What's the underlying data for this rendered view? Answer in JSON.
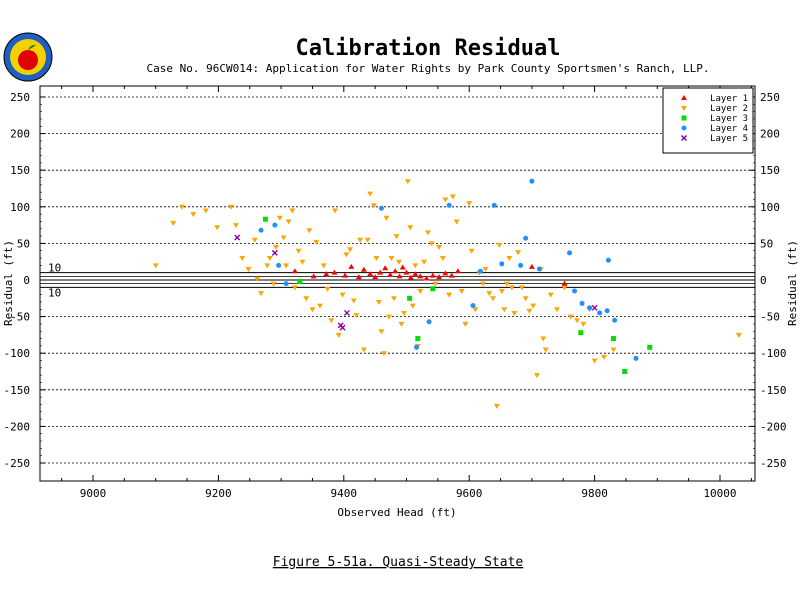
{
  "chart_data": {
    "type": "scatter",
    "title": "Calibration Residual",
    "subtitle": "Case No. 96CW014: Application for Water Rights by Park County Sportsmen's Ranch, LLP.",
    "xlabel": "Observed Head (ft)",
    "ylabel": "Residual (ft)",
    "ylabel_right": "Residual (ft)",
    "caption": "Figure 5-51a.  Quasi-Steady State",
    "xlim": [
      8930,
      10060
    ],
    "ylim": [
      -255,
      255
    ],
    "xticks": [
      9000,
      9200,
      9400,
      9600,
      9800,
      10000
    ],
    "yticks": [
      -250,
      -200,
      -150,
      -100,
      -50,
      0,
      50,
      100,
      150,
      200,
      250
    ],
    "reference_lines": [
      10,
      -10
    ],
    "reference_labels": [
      "10",
      "10"
    ],
    "grid": "horizontal dashed",
    "legend_position": "top-right",
    "series": [
      {
        "name": "Layer 1",
        "marker": "triangle-up",
        "color": "#ff0000",
        "points": [
          [
            9322,
            12
          ],
          [
            9352,
            5
          ],
          [
            9372,
            8
          ],
          [
            9385,
            10
          ],
          [
            9402,
            6
          ],
          [
            9412,
            18
          ],
          [
            9424,
            4
          ],
          [
            9432,
            14
          ],
          [
            9442,
            8
          ],
          [
            9450,
            4
          ],
          [
            9458,
            10
          ],
          [
            9466,
            16
          ],
          [
            9474,
            7
          ],
          [
            9482,
            12
          ],
          [
            9489,
            5
          ],
          [
            9494,
            17
          ],
          [
            9500,
            10
          ],
          [
            9507,
            3
          ],
          [
            9514,
            8
          ],
          [
            9522,
            5
          ],
          [
            9532,
            2
          ],
          [
            9542,
            6
          ],
          [
            9552,
            4
          ],
          [
            9562,
            9
          ],
          [
            9572,
            6
          ],
          [
            9582,
            12
          ],
          [
            9700,
            18
          ],
          [
            9752,
            -5
          ]
        ]
      },
      {
        "name": "Layer 2",
        "marker": "triangle-down",
        "color": "#ffa500",
        "points": [
          [
            9100,
            20
          ],
          [
            9128,
            78
          ],
          [
            9142,
            100
          ],
          [
            9160,
            90
          ],
          [
            9180,
            95
          ],
          [
            9198,
            72
          ],
          [
            9220,
            100
          ],
          [
            9228,
            75
          ],
          [
            9238,
            30
          ],
          [
            9248,
            15
          ],
          [
            9258,
            55
          ],
          [
            9262,
            2
          ],
          [
            9268,
            -18
          ],
          [
            9278,
            20
          ],
          [
            9282,
            30
          ],
          [
            9288,
            -5
          ],
          [
            9292,
            45
          ],
          [
            9298,
            85
          ],
          [
            9304,
            58
          ],
          [
            9308,
            20
          ],
          [
            9312,
            80
          ],
          [
            9318,
            95
          ],
          [
            9322,
            -10
          ],
          [
            9328,
            40
          ],
          [
            9334,
            25
          ],
          [
            9340,
            -25
          ],
          [
            9345,
            68
          ],
          [
            9350,
            -40
          ],
          [
            9356,
            52
          ],
          [
            9362,
            -35
          ],
          [
            9368,
            20
          ],
          [
            9374,
            -12
          ],
          [
            9380,
            -55
          ],
          [
            9386,
            95
          ],
          [
            9392,
            -75
          ],
          [
            9398,
            -20
          ],
          [
            9404,
            35
          ],
          [
            9410,
            42
          ],
          [
            9416,
            -28
          ],
          [
            9420,
            -48
          ],
          [
            9426,
            55
          ],
          [
            9432,
            -95
          ],
          [
            9438,
            55
          ],
          [
            9442,
            118
          ],
          [
            9448,
            102
          ],
          [
            9452,
            30
          ],
          [
            9456,
            -30
          ],
          [
            9460,
            -70
          ],
          [
            9464,
            -100
          ],
          [
            9468,
            85
          ],
          [
            9472,
            -50
          ],
          [
            9476,
            30
          ],
          [
            9480,
            -25
          ],
          [
            9484,
            60
          ],
          [
            9488,
            25
          ],
          [
            9492,
            -60
          ],
          [
            9496,
            -45
          ],
          [
            9502,
            135
          ],
          [
            9506,
            72
          ],
          [
            9510,
            -35
          ],
          [
            9514,
            20
          ],
          [
            9518,
            -90
          ],
          [
            9522,
            -15
          ],
          [
            9528,
            25
          ],
          [
            9534,
            65
          ],
          [
            9540,
            50
          ],
          [
            9546,
            -5
          ],
          [
            9552,
            45
          ],
          [
            9558,
            30
          ],
          [
            9562,
            110
          ],
          [
            9568,
            -20
          ],
          [
            9574,
            114
          ],
          [
            9580,
            80
          ],
          [
            9588,
            -15
          ],
          [
            9594,
            -60
          ],
          [
            9600,
            105
          ],
          [
            9604,
            40
          ],
          [
            9610,
            -40
          ],
          [
            9616,
            10
          ],
          [
            9622,
            -5
          ],
          [
            9626,
            15
          ],
          [
            9632,
            -18
          ],
          [
            9638,
            -25
          ],
          [
            9644,
            -172
          ],
          [
            9648,
            48
          ],
          [
            9652,
            -15
          ],
          [
            9656,
            -40
          ],
          [
            9660,
            -5
          ],
          [
            9664,
            30
          ],
          [
            9668,
            -10
          ],
          [
            9672,
            -45
          ],
          [
            9678,
            38
          ],
          [
            9684,
            -10
          ],
          [
            9690,
            -25
          ],
          [
            9696,
            -42
          ],
          [
            9702,
            -35
          ],
          [
            9708,
            -130
          ],
          [
            9714,
            15
          ],
          [
            9718,
            -80
          ],
          [
            9722,
            -95
          ],
          [
            9730,
            -20
          ],
          [
            9740,
            -40
          ],
          [
            9752,
            -10
          ],
          [
            9762,
            -50
          ],
          [
            9772,
            -55
          ],
          [
            9782,
            -60
          ],
          [
            9792,
            -40
          ],
          [
            9800,
            -110
          ],
          [
            9815,
            -105
          ],
          [
            9830,
            -95
          ],
          [
            10030,
            -75
          ]
        ]
      },
      {
        "name": "Layer 3",
        "marker": "square",
        "color": "#00dd00",
        "points": [
          [
            9275,
            83
          ],
          [
            9330,
            -2
          ],
          [
            9505,
            -25
          ],
          [
            9518,
            -80
          ],
          [
            9542,
            -12
          ],
          [
            9778,
            -72
          ],
          [
            9830,
            -80
          ],
          [
            9848,
            -125
          ],
          [
            9888,
            -92
          ]
        ]
      },
      {
        "name": "Layer 4",
        "marker": "circle",
        "color": "#1e90ff",
        "points": [
          [
            9268,
            68
          ],
          [
            9290,
            75
          ],
          [
            9296,
            20
          ],
          [
            9308,
            -5
          ],
          [
            9460,
            98
          ],
          [
            9516,
            -92
          ],
          [
            9536,
            -57
          ],
          [
            9568,
            102
          ],
          [
            9606,
            -35
          ],
          [
            9618,
            12
          ],
          [
            9640,
            102
          ],
          [
            9652,
            22
          ],
          [
            9682,
            20
          ],
          [
            9690,
            57
          ],
          [
            9700,
            135
          ],
          [
            9712,
            15
          ],
          [
            9760,
            37
          ],
          [
            9768,
            -15
          ],
          [
            9780,
            -32
          ],
          [
            9792,
            -38
          ],
          [
            9808,
            -45
          ],
          [
            9820,
            -42
          ],
          [
            9822,
            27
          ],
          [
            9832,
            -55
          ],
          [
            9866,
            -107
          ]
        ]
      },
      {
        "name": "Layer 5",
        "marker": "x",
        "color": "#8800aa",
        "points": [
          [
            9230,
            58
          ],
          [
            9290,
            37
          ],
          [
            9395,
            -62
          ],
          [
            9398,
            -65
          ],
          [
            9405,
            -45
          ],
          [
            9800,
            -38
          ]
        ]
      }
    ]
  }
}
